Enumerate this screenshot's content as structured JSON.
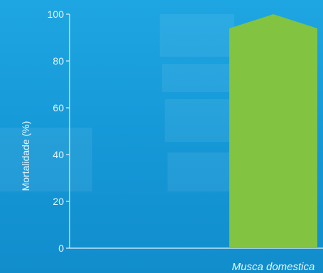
{
  "chart_data": {
    "type": "bar",
    "categories": [
      "Musca domestica"
    ],
    "values": [
      100
    ],
    "title": "",
    "xlabel": "",
    "ylabel": "Mortalidade (%)",
    "ylim": [
      0,
      100
    ],
    "yticks": [
      "0",
      "20",
      "40",
      "60",
      "80",
      "100"
    ],
    "grid": false,
    "legend": "none"
  },
  "colors": {
    "bar": "#82c341",
    "axis": "#e6f4fb",
    "text": "#e9f6fd",
    "background": "#1a9fdc"
  }
}
